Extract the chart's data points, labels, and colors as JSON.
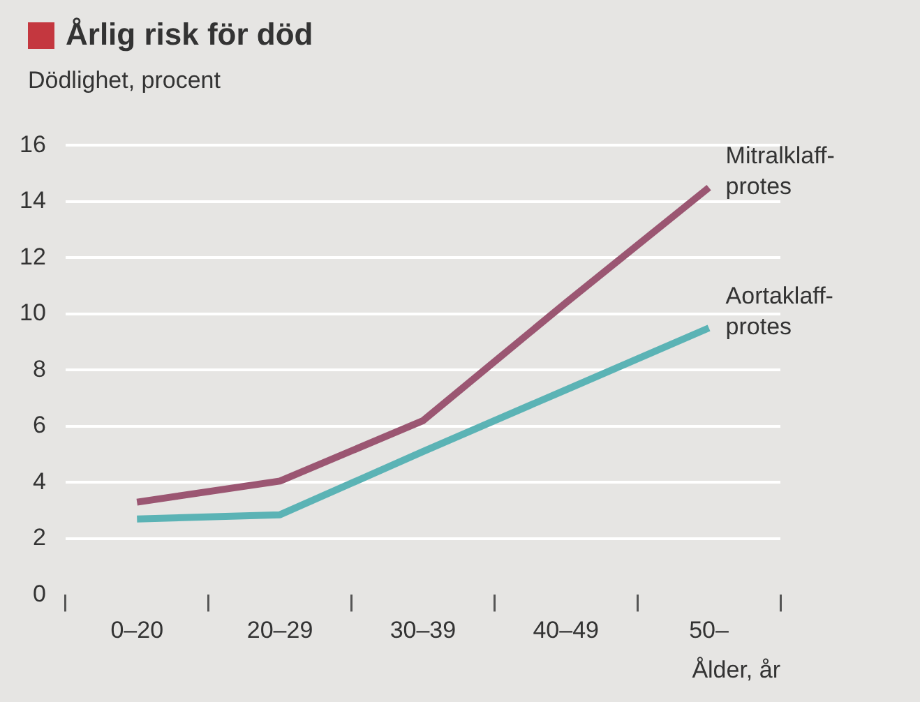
{
  "chart_data": {
    "type": "line",
    "title": "Årlig risk för död",
    "ylabel": "Dödlighet, procent",
    "xlabel": "Ålder, år",
    "categories": [
      "0–20",
      "20–29",
      "30–39",
      "40–49",
      "50–"
    ],
    "series": [
      {
        "name": "Mitralklaff-\nprotes",
        "color": "#9b5672",
        "values": [
          3.3,
          4.05,
          6.2,
          10.4,
          14.5
        ]
      },
      {
        "name": "Aortaklaff-\nprotes",
        "color": "#5bb3b5",
        "values": [
          2.7,
          2.85,
          5.1,
          7.3,
          9.5
        ]
      }
    ],
    "ylim": [
      0,
      16
    ],
    "yticks": [
      0,
      2,
      4,
      6,
      8,
      10,
      12,
      14,
      16
    ],
    "grid": "y",
    "legend": false,
    "marker": "none",
    "line_style": "solid"
  }
}
